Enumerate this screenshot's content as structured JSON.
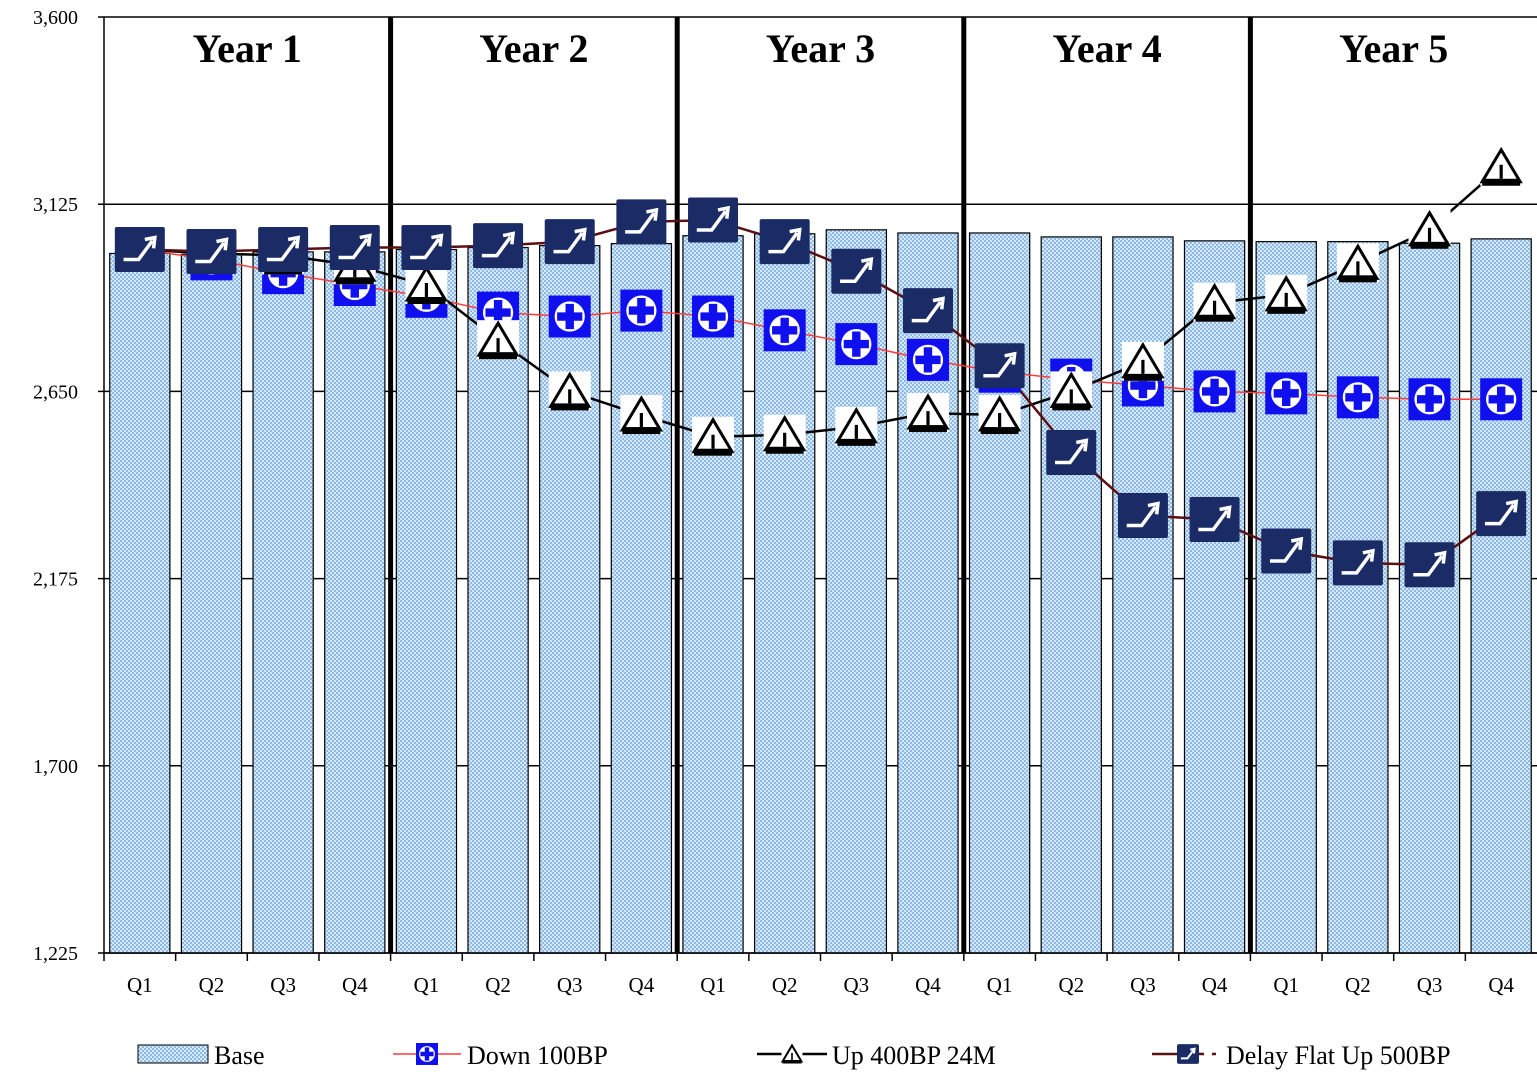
{
  "chart_data": {
    "type": "bar",
    "ylim": [
      1225,
      3600
    ],
    "yticks": [
      "1,225",
      "1,700",
      "2,175",
      "2,650",
      "3,125",
      "3,600"
    ],
    "ytick_values": [
      1225,
      1700,
      2175,
      2650,
      3125,
      3600
    ],
    "categories": [
      "Q1",
      "Q2",
      "Q3",
      "Q4",
      "Q1",
      "Q2",
      "Q3",
      "Q4",
      "Q1",
      "Q2",
      "Q3",
      "Q4",
      "Q1",
      "Q2",
      "Q3",
      "Q4",
      "Q1",
      "Q2",
      "Q3",
      "Q4"
    ],
    "groups": [
      "Year 1",
      "Year 2",
      "Year 3",
      "Year 4",
      "Year 5"
    ],
    "grid": "horizontal",
    "legend_position": "bottom",
    "series": [
      {
        "name": "Base",
        "kind": "bar",
        "color": "#bcd8f2",
        "values": [
          3000,
          2998,
          3004,
          3004,
          3010,
          3015,
          3020,
          3025,
          3045,
          3050,
          3060,
          3052,
          3052,
          3042,
          3042,
          3032,
          3030,
          3030,
          3026,
          3037
        ]
      },
      {
        "name": "Down 100BP",
        "kind": "line",
        "color": "#ff3b3b",
        "marker": "cross-square",
        "marker_color": "#1a1aff",
        "values": [
          3010,
          2985,
          2950,
          2920,
          2890,
          2850,
          2840,
          2855,
          2840,
          2805,
          2770,
          2730,
          2700,
          2680,
          2665,
          2650,
          2645,
          2635,
          2630,
          2630
        ]
      },
      {
        "name": "Up 400BP 24M",
        "kind": "line",
        "color": "#000000",
        "marker": "triangle",
        "marker_color": "#ffffff",
        "values": [
          3010,
          3000,
          2995,
          2970,
          2920,
          2780,
          2650,
          2590,
          2535,
          2540,
          2560,
          2595,
          2590,
          2650,
          2725,
          2875,
          2895,
          2975,
          3060,
          3220
        ]
      },
      {
        "name": "Delay Flat Up 500BP",
        "kind": "line",
        "color": "#5a1010",
        "marker": "arrow-square",
        "marker_color": "#1b2b66",
        "values": [
          3010,
          3005,
          3010,
          3015,
          3015,
          3020,
          3030,
          3080,
          3085,
          3030,
          2955,
          2855,
          2715,
          2495,
          2335,
          2325,
          2245,
          2215,
          2210,
          2340
        ]
      }
    ]
  }
}
